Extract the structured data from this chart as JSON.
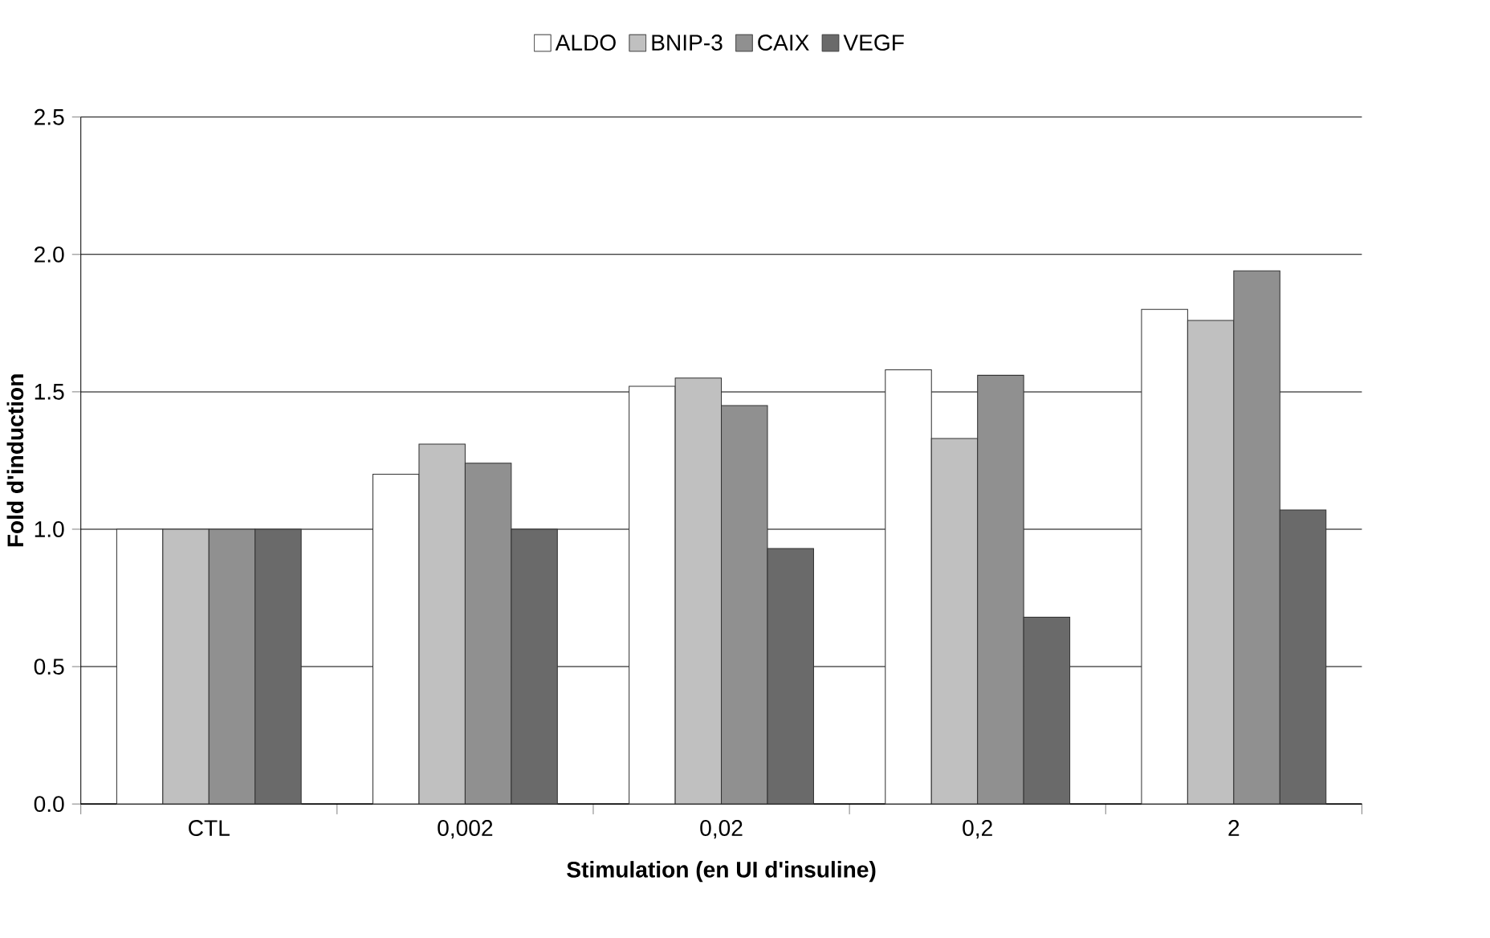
{
  "chart_data": {
    "type": "bar",
    "xlabel": "Stimulation (en UI d'insuline)",
    "ylabel": "Fold d'induction",
    "categories": [
      "CTL",
      "0,002",
      "0,02",
      "0,2",
      "2"
    ],
    "series": [
      {
        "name": "ALDO",
        "color": "#ffffff",
        "values": [
          1.0,
          1.2,
          1.52,
          1.58,
          1.8
        ]
      },
      {
        "name": "BNIP-3",
        "color": "#c0c0c0",
        "values": [
          1.0,
          1.31,
          1.55,
          1.33,
          1.76
        ]
      },
      {
        "name": "CAIX",
        "color": "#909090",
        "values": [
          1.0,
          1.24,
          1.45,
          1.56,
          1.94
        ]
      },
      {
        "name": "VEGF",
        "color": "#6a6a6a",
        "values": [
          1.0,
          1.0,
          0.93,
          0.68,
          1.07
        ]
      }
    ],
    "ylim": [
      0,
      2.5
    ],
    "yticks": [
      {
        "value": 0,
        "label": "0.0"
      },
      {
        "value": 0.5,
        "label": "0.5"
      },
      {
        "value": 1,
        "label": "1.0"
      },
      {
        "value": 1.5,
        "label": "1.5"
      },
      {
        "value": 2,
        "label": "2.0"
      },
      {
        "value": 2.5,
        "label": "2.5"
      }
    ],
    "grid": "y",
    "legend": "top"
  }
}
